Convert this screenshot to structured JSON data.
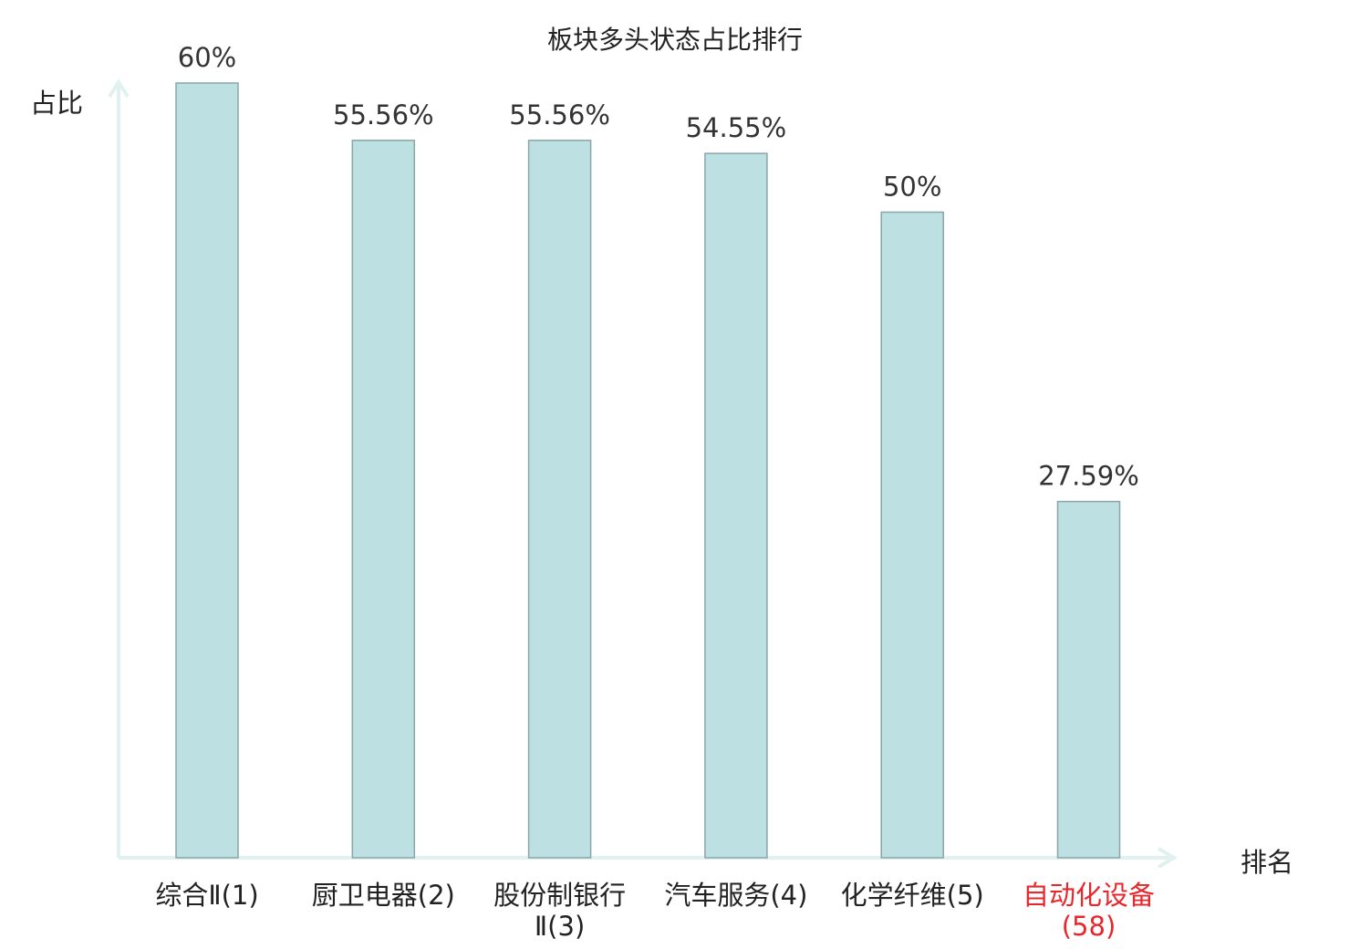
{
  "chart_data": {
    "type": "bar",
    "title": "板块多头状态占比排行",
    "ylabel": "占比",
    "xlabel": "排名",
    "ylim": [
      0,
      60
    ],
    "categories": [
      "综合Ⅱ(1)",
      "厨卫电器(2)",
      "股份制银行Ⅱ(3)",
      "汽车服务(4)",
      "化学纤维(5)",
      "自动化设备(58)"
    ],
    "values": [
      60,
      55.56,
      55.56,
      54.55,
      50,
      27.59
    ],
    "value_labels": [
      "60%",
      "55.56%",
      "55.56%",
      "54.55%",
      "50%",
      "27.59%"
    ],
    "highlight_category": "自动化设备(58)",
    "grid": false,
    "legend": "none"
  },
  "colors": {
    "bar_fill": "#bde0e3",
    "bar_stroke": "#8aa6a9",
    "axis": "#e1f1ef",
    "text": "#222222",
    "highlight": "#e8262b"
  }
}
